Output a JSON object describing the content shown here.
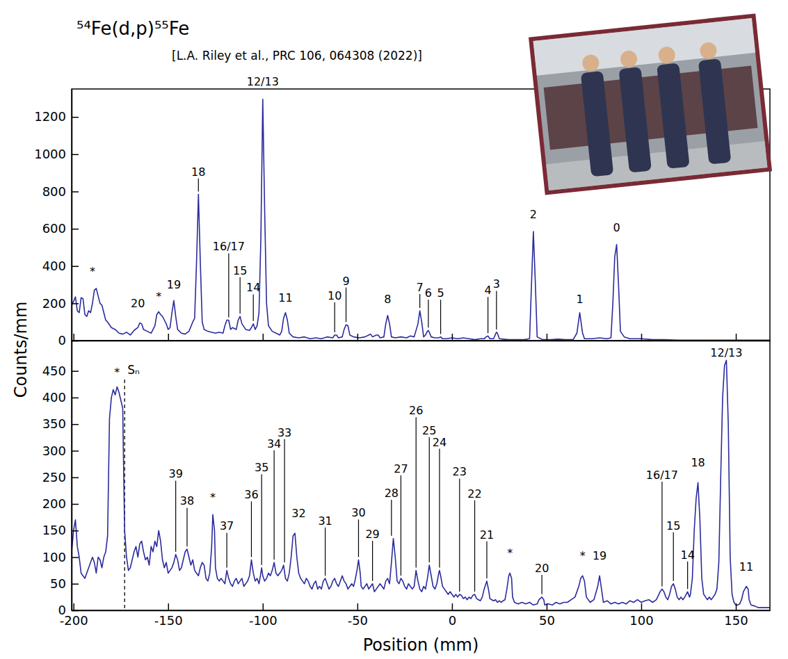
{
  "chart_data": [
    {
      "type": "line",
      "title": "⁵⁴Fe(d,p)⁵⁵Fe",
      "subtitle": "[L.A. Riley et al., PRC 106, 064308 (2022)]",
      "y_label": "Counts/mm",
      "color": "#2b2b9e",
      "tick_labels": "y",
      "xlim": [
        -201,
        168
      ],
      "xticks": [
        -200,
        -150,
        -100,
        -50,
        0,
        50,
        100,
        150
      ],
      "ylim": [
        0,
        1350
      ],
      "yticks": [
        0,
        200,
        400,
        600,
        800,
        1000,
        1200
      ],
      "x": [
        -201,
        -200,
        -199,
        -198,
        -197,
        -196,
        -195,
        -194,
        -193,
        -192,
        -191,
        -190,
        -189,
        -188,
        -187,
        -186,
        -185,
        -184,
        -183,
        -182,
        -180,
        -178,
        -176,
        -174,
        -172,
        -170,
        -168,
        -166,
        -165,
        -164,
        -163,
        -161,
        -159,
        -157,
        -156,
        -155,
        -154,
        -153,
        -152,
        -151,
        -150,
        -149,
        -148,
        -147,
        -146,
        -145,
        -143,
        -141,
        -139,
        -137,
        -136,
        -135,
        -134,
        -133,
        -132,
        -131,
        -129,
        -127,
        -125,
        -123,
        -121,
        -120,
        -119,
        -118,
        -117,
        -116,
        -114,
        -113,
        -112,
        -111,
        -109,
        -107,
        -106,
        -105,
        -104,
        -103,
        -102,
        -101,
        -100,
        -99,
        -98,
        -97,
        -95,
        -93,
        -91,
        -90,
        -89,
        -88,
        -87,
        -86,
        -84,
        -81,
        -78,
        -75,
        -72,
        -69,
        -66,
        -63,
        -62,
        -61,
        -60,
        -58,
        -57,
        -56,
        -55,
        -54,
        -52,
        -49,
        -46,
        -44,
        -43,
        -42,
        -40,
        -39,
        -38,
        -36,
        -35,
        -34,
        -33,
        -32,
        -30,
        -27,
        -24,
        -22,
        -20,
        -18,
        -17,
        -16,
        -15,
        -14,
        -13,
        -12.5,
        -12,
        -11,
        -9,
        -7,
        -6,
        -5,
        -3,
        0,
        3,
        6,
        9,
        12,
        15,
        17,
        18,
        19,
        20,
        22,
        23,
        23.5,
        24,
        25,
        27,
        30,
        34,
        38,
        41,
        42,
        43,
        44,
        45,
        48,
        52,
        56,
        60,
        64,
        66,
        67.5,
        69,
        70,
        74,
        78,
        82,
        84,
        85,
        86,
        87,
        88,
        89,
        91,
        94,
        100,
        106,
        112,
        120,
        130,
        140,
        150,
        160,
        168
      ],
      "values": [
        190,
        210,
        235,
        160,
        150,
        230,
        225,
        140,
        130,
        160,
        150,
        200,
        270,
        280,
        240,
        200,
        190,
        150,
        110,
        100,
        70,
        60,
        40,
        35,
        45,
        30,
        55,
        70,
        95,
        90,
        60,
        50,
        40,
        80,
        140,
        155,
        140,
        130,
        110,
        90,
        60,
        70,
        150,
        215,
        130,
        60,
        40,
        35,
        50,
        100,
        120,
        420,
        785,
        420,
        100,
        60,
        50,
        45,
        40,
        45,
        40,
        80,
        110,
        110,
        60,
        70,
        60,
        110,
        130,
        90,
        60,
        55,
        70,
        90,
        60,
        80,
        150,
        550,
        1295,
        700,
        200,
        80,
        50,
        40,
        30,
        50,
        120,
        150,
        110,
        40,
        20,
        15,
        20,
        10,
        15,
        10,
        20,
        15,
        30,
        30,
        15,
        20,
        60,
        85,
        80,
        30,
        20,
        15,
        20,
        30,
        35,
        20,
        30,
        30,
        15,
        20,
        90,
        135,
        90,
        20,
        15,
        20,
        15,
        25,
        20,
        90,
        160,
        100,
        20,
        30,
        50,
        55,
        45,
        20,
        15,
        15,
        20,
        10,
        10,
        15,
        10,
        15,
        10,
        5,
        10,
        10,
        20,
        25,
        10,
        10,
        35,
        45,
        40,
        10,
        8,
        5,
        5,
        5,
        10,
        300,
        585,
        320,
        20,
        5,
        5,
        8,
        5,
        5,
        40,
        150,
        40,
        10,
        10,
        15,
        10,
        15,
        200,
        450,
        515,
        300,
        50,
        20,
        10,
        10,
        5,
        5,
        3,
        3,
        3,
        3,
        3,
        3
      ],
      "annotations": [
        {
          "text": "*",
          "x": -190,
          "y": 350
        },
        {
          "text": "20",
          "x": -166,
          "y": 180
        },
        {
          "text": "*",
          "x": -155,
          "y": 215
        },
        {
          "text": "19",
          "x": -147,
          "y": 280
        },
        {
          "text": "18",
          "x": -134,
          "y": 885
        },
        {
          "text": "16/17",
          "x": -118,
          "y": 483
        },
        {
          "text": "15",
          "x": -112,
          "y": 355
        },
        {
          "text": "14",
          "x": -105,
          "y": 263
        },
        {
          "text": "12/13",
          "x": -100,
          "y": 1370
        },
        {
          "text": "11",
          "x": -88,
          "y": 210
        },
        {
          "text": "10",
          "x": -62,
          "y": 220
        },
        {
          "text": "9",
          "x": -56,
          "y": 300
        },
        {
          "text": "8",
          "x": -34,
          "y": 200
        },
        {
          "text": "7",
          "x": -17,
          "y": 265
        },
        {
          "text": "6",
          "x": -12.5,
          "y": 235
        },
        {
          "text": "5",
          "x": -6,
          "y": 234
        },
        {
          "text": "4",
          "x": 19,
          "y": 249
        },
        {
          "text": "3",
          "x": 23.5,
          "y": 282
        },
        {
          "text": "2",
          "x": 43,
          "y": 658
        },
        {
          "text": "1",
          "x": 67.5,
          "y": 201
        },
        {
          "text": "0",
          "x": 87,
          "y": 585
        }
      ]
    },
    {
      "type": "line",
      "x_label": "Position (mm)",
      "color": "#2b2b9e",
      "xlim": [
        -201,
        168
      ],
      "xticks": [
        -200,
        -150,
        -100,
        -50,
        0,
        50,
        100,
        150
      ],
      "ylim": [
        0,
        507
      ],
      "yticks": [
        0,
        50,
        100,
        150,
        200,
        250,
        300,
        350,
        400,
        450
      ],
      "vline": {
        "x": -173,
        "label": "Sₙ"
      },
      "x": [
        -201,
        -200,
        -199,
        -198,
        -197,
        -196,
        -194,
        -192,
        -190,
        -189,
        -188,
        -187,
        -186,
        -185,
        -184,
        -183,
        -182,
        -181,
        -180,
        -179,
        -178,
        -177,
        -176,
        -175,
        -174,
        -173.5,
        -173,
        -172,
        -171,
        -170,
        -169,
        -168,
        -167,
        -166,
        -165,
        -164,
        -163,
        -162,
        -161,
        -160,
        -159,
        -158,
        -157,
        -156,
        -155,
        -154,
        -153,
        -152,
        -151,
        -150,
        -149,
        -148,
        -147,
        -146,
        -145,
        -144,
        -143,
        -142,
        -141,
        -140,
        -139,
        -138,
        -137,
        -136,
        -135,
        -134,
        -133,
        -132,
        -131,
        -130,
        -129,
        -128,
        -127,
        -126.4,
        -125.5,
        -125,
        -124,
        -123,
        -122,
        -121,
        -120,
        -119,
        -118,
        -117,
        -116,
        -115,
        -114,
        -113,
        -112,
        -111,
        -110,
        -109,
        -108,
        -107,
        -106,
        -105,
        -104,
        -103,
        -102,
        -101,
        -100.6,
        -100,
        -99,
        -98,
        -97,
        -96,
        -95,
        -94,
        -93,
        -92,
        -91,
        -90,
        -89,
        -88,
        -87,
        -86,
        -85,
        -84,
        -83,
        -82,
        -81,
        -80,
        -79,
        -78,
        -77,
        -76,
        -75,
        -74,
        -73,
        -72,
        -71,
        -70,
        -69,
        -68,
        -67,
        -66,
        -65,
        -64,
        -63,
        -62,
        -61,
        -60,
        -59,
        -58,
        -57,
        -56,
        -55,
        -54,
        -53,
        -52,
        -51,
        -50,
        -49.4,
        -48.5,
        -48,
        -47,
        -46,
        -45,
        -44,
        -43,
        -42,
        -41,
        -40,
        -39,
        -38,
        -37,
        -36,
        -35,
        -34,
        -33,
        -32,
        -31,
        -30,
        -29,
        -28,
        -27,
        -26,
        -25,
        -24,
        -23,
        -22,
        -21,
        -20,
        -19,
        -18,
        -17,
        -16,
        -15,
        -14,
        -13,
        -12,
        -11,
        -10,
        -9,
        -8,
        -7,
        -6.6,
        -6,
        -5,
        -4,
        -3,
        -2,
        -1,
        0,
        1,
        2,
        3,
        4,
        5,
        6,
        7,
        8,
        9,
        10,
        11,
        12,
        13,
        14,
        15,
        16,
        17,
        18.4,
        19.5,
        20,
        21,
        22,
        23,
        24,
        25,
        26,
        27,
        28,
        29,
        30,
        30.6,
        31.5,
        32,
        33,
        35,
        37,
        39,
        41,
        43,
        45,
        46,
        47.5,
        48.5,
        49,
        51,
        53,
        55,
        57,
        59,
        61,
        63,
        65,
        67,
        68,
        69,
        70,
        71,
        73,
        75,
        77,
        78,
        79,
        80,
        82,
        84,
        86,
        88,
        90,
        92,
        94,
        96,
        98,
        100,
        102,
        104,
        106,
        108,
        110,
        111,
        112,
        113,
        114,
        115,
        116,
        117,
        118,
        119,
        120,
        121,
        122,
        123,
        124.5,
        125.5,
        126,
        127,
        128,
        129,
        130,
        131,
        132,
        133,
        134,
        135,
        136,
        137,
        138,
        139,
        140,
        141,
        142,
        143,
        144,
        145,
        146,
        147,
        148,
        149,
        150,
        151,
        152,
        153,
        154,
        155.5,
        156.5,
        157,
        158,
        160,
        162,
        165,
        168
      ],
      "values": [
        110,
        150,
        170,
        120,
        100,
        70,
        60,
        80,
        100,
        90,
        70,
        100,
        95,
        80,
        100,
        110,
        140,
        360,
        400,
        415,
        405,
        420,
        410,
        395,
        380,
        260,
        150,
        100,
        75,
        80,
        95,
        110,
        120,
        100,
        125,
        130,
        110,
        95,
        100,
        85,
        120,
        110,
        130,
        120,
        150,
        130,
        95,
        80,
        90,
        70,
        75,
        80,
        90,
        105,
        95,
        75,
        80,
        95,
        110,
        115,
        100,
        85,
        95,
        75,
        70,
        65,
        80,
        90,
        85,
        60,
        55,
        70,
        120,
        180,
        150,
        80,
        60,
        55,
        60,
        55,
        50,
        75,
        60,
        50,
        45,
        55,
        60,
        50,
        55,
        60,
        45,
        50,
        55,
        65,
        95,
        70,
        55,
        60,
        50,
        70,
        80,
        65,
        55,
        60,
        70,
        65,
        75,
        90,
        70,
        65,
        70,
        75,
        85,
        60,
        55,
        70,
        100,
        140,
        145,
        100,
        70,
        60,
        55,
        50,
        60,
        55,
        45,
        40,
        50,
        55,
        40,
        45,
        40,
        55,
        60,
        50,
        40,
        45,
        55,
        60,
        50,
        45,
        55,
        65,
        55,
        50,
        40,
        45,
        50,
        45,
        60,
        80,
        95,
        70,
        45,
        40,
        45,
        50,
        40,
        45,
        50,
        35,
        40,
        45,
        50,
        45,
        40,
        55,
        60,
        50,
        90,
        135,
        100,
        55,
        50,
        60,
        55,
        45,
        40,
        50,
        45,
        40,
        45,
        75,
        55,
        40,
        35,
        45,
        40,
        60,
        85,
        65,
        45,
        40,
        50,
        70,
        75,
        65,
        45,
        40,
        35,
        30,
        35,
        30,
        25,
        30,
        25,
        30,
        28,
        22,
        25,
        20,
        25,
        22,
        28,
        30,
        22,
        20,
        18,
        25,
        40,
        55,
        35,
        22,
        20,
        18,
        20,
        15,
        18,
        15,
        18,
        20,
        40,
        65,
        70,
        60,
        25,
        15,
        12,
        15,
        12,
        15,
        10,
        12,
        20,
        25,
        20,
        10,
        12,
        10,
        15,
        12,
        15,
        15,
        20,
        25,
        45,
        60,
        65,
        55,
        25,
        15,
        20,
        45,
        65,
        40,
        15,
        18,
        12,
        15,
        12,
        15,
        12,
        18,
        15,
        20,
        15,
        18,
        20,
        15,
        20,
        35,
        40,
        35,
        25,
        20,
        30,
        45,
        50,
        40,
        25,
        20,
        25,
        20,
        25,
        35,
        25,
        30,
        60,
        150,
        210,
        240,
        170,
        60,
        30,
        25,
        20,
        25,
        20,
        25,
        30,
        40,
        90,
        250,
        400,
        460,
        470,
        350,
        100,
        30,
        15,
        10,
        10,
        12,
        20,
        35,
        45,
        40,
        20,
        10,
        8,
        5,
        5,
        5
      ],
      "annotations": [
        {
          "text": "*",
          "x": -177,
          "y": 440
        },
        {
          "text": "39",
          "x": -146,
          "y": 249
        },
        {
          "text": "38",
          "x": -140,
          "y": 198
        },
        {
          "text": "*",
          "x": -126.4,
          "y": 205
        },
        {
          "text": "37",
          "x": -119,
          "y": 151
        },
        {
          "text": "36",
          "x": -106,
          "y": 210
        },
        {
          "text": "35",
          "x": -100.6,
          "y": 261
        },
        {
          "text": "34",
          "x": -94,
          "y": 306
        },
        {
          "text": "33",
          "x": -88.5,
          "y": 327
        },
        {
          "text": "32",
          "x": -81,
          "y": 175
        },
        {
          "text": "31",
          "x": -67,
          "y": 161
        },
        {
          "text": "30",
          "x": -49.4,
          "y": 176
        },
        {
          "text": "29",
          "x": -42,
          "y": 136
        },
        {
          "text": "28",
          "x": -32,
          "y": 213
        },
        {
          "text": "27",
          "x": -27,
          "y": 259
        },
        {
          "text": "26",
          "x": -19,
          "y": 368
        },
        {
          "text": "25",
          "x": -12,
          "y": 331
        },
        {
          "text": "24",
          "x": -6.6,
          "y": 309
        },
        {
          "text": "23",
          "x": 4,
          "y": 253
        },
        {
          "text": "22",
          "x": 12,
          "y": 212
        },
        {
          "text": "21",
          "x": 18.4,
          "y": 135
        },
        {
          "text": "*",
          "x": 30.6,
          "y": 100
        },
        {
          "text": "20",
          "x": 47.5,
          "y": 72
        },
        {
          "text": "*",
          "x": 69,
          "y": 95
        },
        {
          "text": "19",
          "x": 78,
          "y": 95
        },
        {
          "text": "18",
          "x": 130,
          "y": 270
        },
        {
          "text": "16/17",
          "x": 111,
          "y": 247
        },
        {
          "text": "15",
          "x": 117,
          "y": 152
        },
        {
          "text": "14",
          "x": 124.5,
          "y": 97
        },
        {
          "text": "12/13",
          "x": 145,
          "y": 477
        },
        {
          "text": "11",
          "x": 155.5,
          "y": 75
        }
      ]
    }
  ]
}
